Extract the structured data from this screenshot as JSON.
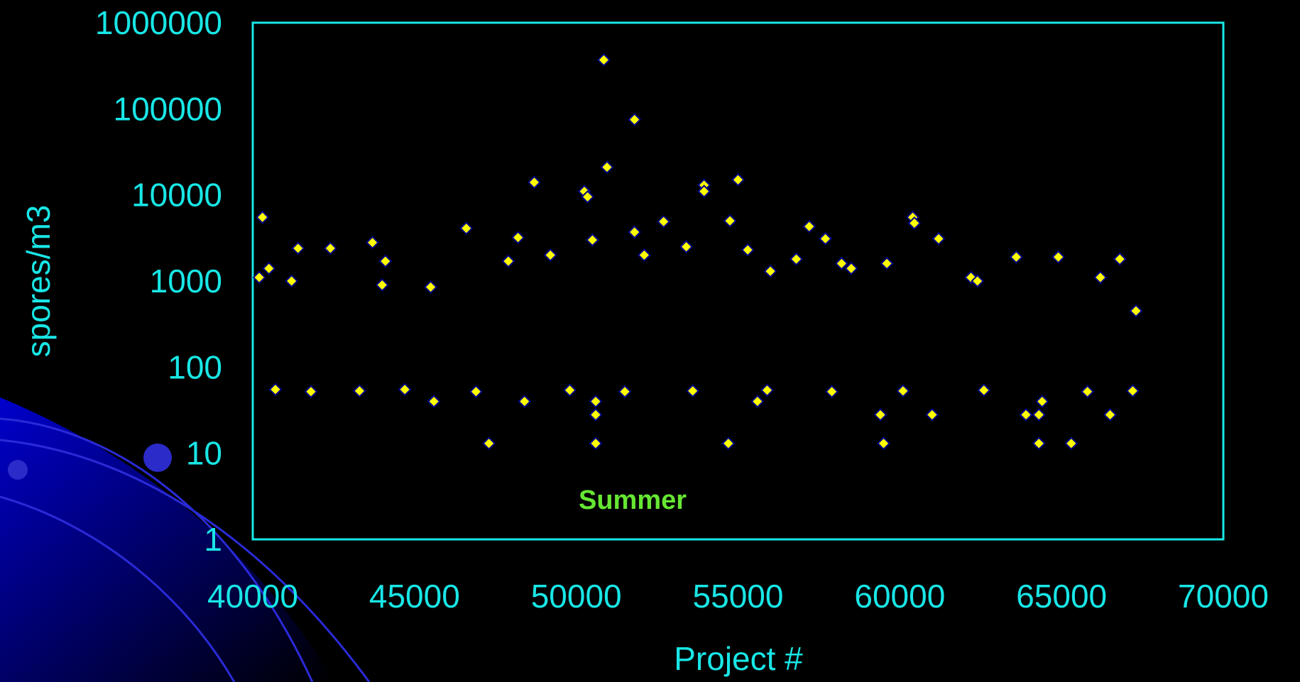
{
  "chart_data": {
    "type": "scatter",
    "title": "",
    "xlabel": "Project #",
    "ylabel": "spores/m3",
    "annotation": "Summer",
    "x_scale": "linear",
    "y_scale": "log",
    "xlim": [
      40000,
      70000
    ],
    "ylim": [
      1,
      1000000
    ],
    "x_ticks": [
      "40000",
      "45000",
      "50000",
      "55000",
      "60000",
      "65000",
      "70000"
    ],
    "y_ticks": [
      "1",
      "10",
      "100",
      "1000",
      "10000",
      "100000",
      "1000000"
    ],
    "grid": false,
    "legend": "none",
    "marker": "diamond",
    "colors": {
      "background": "#000000",
      "axis_text": "#19e6e6",
      "plot_frame": "#19e6e6",
      "marker_fill": "#ffff00",
      "marker_edge": "#00008b",
      "annotation": "#66e633"
    },
    "series": [
      {
        "values_note_free": true,
        "x": [
          50850,
          51800,
          40300,
          54750,
          48700,
          50250,
          50350,
          50950,
          53950,
          60400,
          60450,
          53950,
          55000,
          52700,
          51800,
          46600,
          57200,
          57700,
          62200,
          58200,
          49200,
          44100,
          55300,
          61200,
          53400,
          41400,
          42400,
          43700,
          40500,
          40200,
          41200,
          44000,
          45500,
          47900,
          48200,
          50500,
          52100,
          56000,
          56800,
          58500,
          59600,
          62400,
          63600,
          64900,
          66200,
          66800,
          67300,
          47300,
          50600,
          54700,
          59500,
          64300,
          65300,
          50600,
          59400,
          61000,
          63900,
          64300,
          66500,
          45600,
          48400,
          50600,
          55600,
          64400,
          40700,
          41800,
          43300,
          44700,
          46900,
          49800,
          51500,
          53600,
          55900,
          57900,
          60100,
          62600,
          65800,
          67200
        ],
        "y": [
          370000,
          75000,
          5500,
          5000,
          14000,
          11000,
          9500,
          21000,
          13000,
          5500,
          4700,
          11000,
          15000,
          4900,
          3700,
          4100,
          4300,
          3100,
          1100,
          1600,
          2000,
          1700,
          2300,
          3100,
          2500,
          2400,
          2400,
          2800,
          1400,
          1100,
          1000,
          900,
          850,
          1700,
          3200,
          3000,
          2000,
          1300,
          1800,
          1400,
          1600,
          1000,
          1900,
          1900,
          1100,
          1800,
          450,
          13,
          13,
          13,
          13,
          13,
          13,
          28,
          28,
          28,
          28,
          28,
          28,
          40,
          40,
          40,
          40,
          40,
          55,
          52,
          53,
          55,
          52,
          54,
          52,
          53,
          54,
          52,
          53,
          54,
          52,
          53
        ]
      }
    ]
  }
}
